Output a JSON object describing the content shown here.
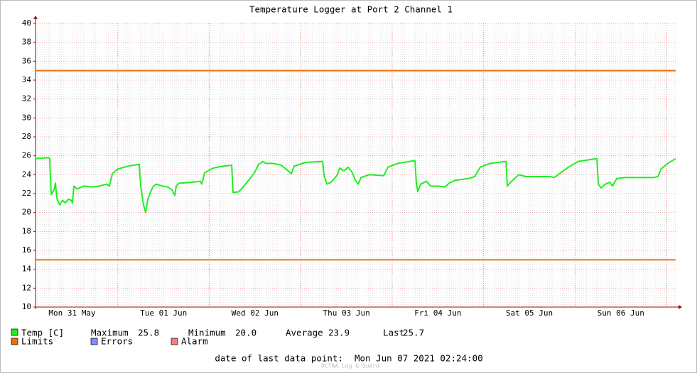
{
  "chart_data": {
    "type": "line",
    "title": "Temperature Logger at Port 2 Channel 1",
    "xlim": [
      0.1,
      7.1
    ],
    "xticks": [
      {
        "value": 0.5,
        "label": "Mon 31 May"
      },
      {
        "value": 1.5,
        "label": "Tue 01 Jun"
      },
      {
        "value": 2.5,
        "label": "Wed 02 Jun"
      },
      {
        "value": 3.5,
        "label": "Thu 03 Jun"
      },
      {
        "value": 4.5,
        "label": "Fri 04 Jun"
      },
      {
        "value": 5.5,
        "label": "Sat 05 Jun"
      },
      {
        "value": 6.5,
        "label": "Sun 06 Jun"
      }
    ],
    "ylim": [
      10,
      40
    ],
    "yticks": [
      10,
      12,
      14,
      16,
      18,
      20,
      22,
      24,
      26,
      28,
      30,
      32,
      34,
      36,
      38,
      40
    ],
    "grid": true,
    "x": [
      0.1,
      0.24,
      0.255,
      0.271,
      0.302,
      0.318,
      0.333,
      0.364,
      0.395,
      0.426,
      0.457,
      0.489,
      0.504,
      0.52,
      0.551,
      0.582,
      0.628,
      0.722,
      0.799,
      0.877,
      0.908,
      0.94,
      1.001,
      1.11,
      1.234,
      1.25,
      1.281,
      1.304,
      1.328,
      1.359,
      1.39,
      1.421,
      1.483,
      1.545,
      1.592,
      1.623,
      1.639,
      1.67,
      1.809,
      1.903,
      1.918,
      1.949,
      2.043,
      2.151,
      2.245,
      2.26,
      2.322,
      2.369,
      2.431,
      2.493,
      2.54,
      2.586,
      2.617,
      2.695,
      2.788,
      2.851,
      2.897,
      2.928,
      3.053,
      3.239,
      3.255,
      3.286,
      3.332,
      3.395,
      3.426,
      3.472,
      3.519,
      3.565,
      3.597,
      3.628,
      3.659,
      3.752,
      3.907,
      3.954,
      4.063,
      4.249,
      4.265,
      4.28,
      4.311,
      4.374,
      4.42,
      4.498,
      4.576,
      4.622,
      4.684,
      4.84,
      4.902,
      4.964,
      5.073,
      5.244,
      5.259,
      5.306,
      5.384,
      5.461,
      5.617,
      5.726,
      5.772,
      5.928,
      6.036,
      6.238,
      6.254,
      6.285,
      6.331,
      6.378,
      6.409,
      6.456,
      6.549,
      6.705,
      6.86,
      6.907,
      6.938,
      7.015,
      7.1
    ],
    "series": [
      {
        "name": "Temp [C]",
        "color": "#22ee22",
        "values": [
          25.7,
          25.8,
          25.7,
          21.9,
          22.4,
          23.1,
          21.5,
          20.8,
          21.3,
          21.0,
          21.4,
          21.3,
          21.0,
          22.8,
          22.5,
          22.6,
          22.8,
          22.7,
          22.8,
          23.0,
          22.8,
          24.1,
          24.6,
          24.9,
          25.1,
          22.8,
          20.8,
          20.0,
          21.4,
          22.2,
          22.8,
          23.0,
          22.8,
          22.7,
          22.4,
          21.8,
          22.8,
          23.1,
          23.2,
          23.3,
          23.0,
          24.2,
          24.7,
          24.9,
          25.0,
          22.1,
          22.2,
          22.7,
          23.4,
          24.2,
          25.1,
          25.4,
          25.2,
          25.2,
          25.0,
          24.5,
          24.1,
          24.9,
          25.3,
          25.4,
          23.9,
          23.0,
          23.2,
          23.9,
          24.7,
          24.4,
          24.8,
          24.2,
          23.4,
          23.0,
          23.7,
          24.0,
          23.9,
          24.8,
          25.2,
          25.5,
          23.0,
          22.2,
          23.0,
          23.3,
          22.8,
          22.8,
          22.7,
          23.1,
          23.4,
          23.6,
          23.8,
          24.8,
          25.2,
          25.4,
          22.8,
          23.3,
          24.0,
          23.8,
          23.8,
          23.8,
          23.7,
          24.8,
          25.4,
          25.7,
          23.0,
          22.6,
          23.0,
          23.2,
          22.8,
          23.6,
          23.7,
          23.7,
          23.7,
          23.8,
          24.6,
          25.2,
          25.7
        ]
      }
    ],
    "limits": {
      "name": "Limits",
      "color": "#e8700a",
      "values": [
        35,
        15
      ]
    },
    "legend_extra": [
      {
        "name": "Errors",
        "color": "#7f8fff"
      },
      {
        "name": "Alarm",
        "color": "#f08080"
      }
    ],
    "stats": [
      {
        "label": "Maximum",
        "value": 25.8
      },
      {
        "label": "Minimum",
        "value": 20,
        "value_label": "20.0"
      },
      {
        "label": "Average",
        "value": 23.9
      },
      {
        "label": "Last",
        "value": 25.7
      }
    ],
    "footer_label": "date of last data point:",
    "last_data_point": "Mon Jun 07 2021 02:24:00",
    "watermark": "OCTAA Log & Guard"
  }
}
